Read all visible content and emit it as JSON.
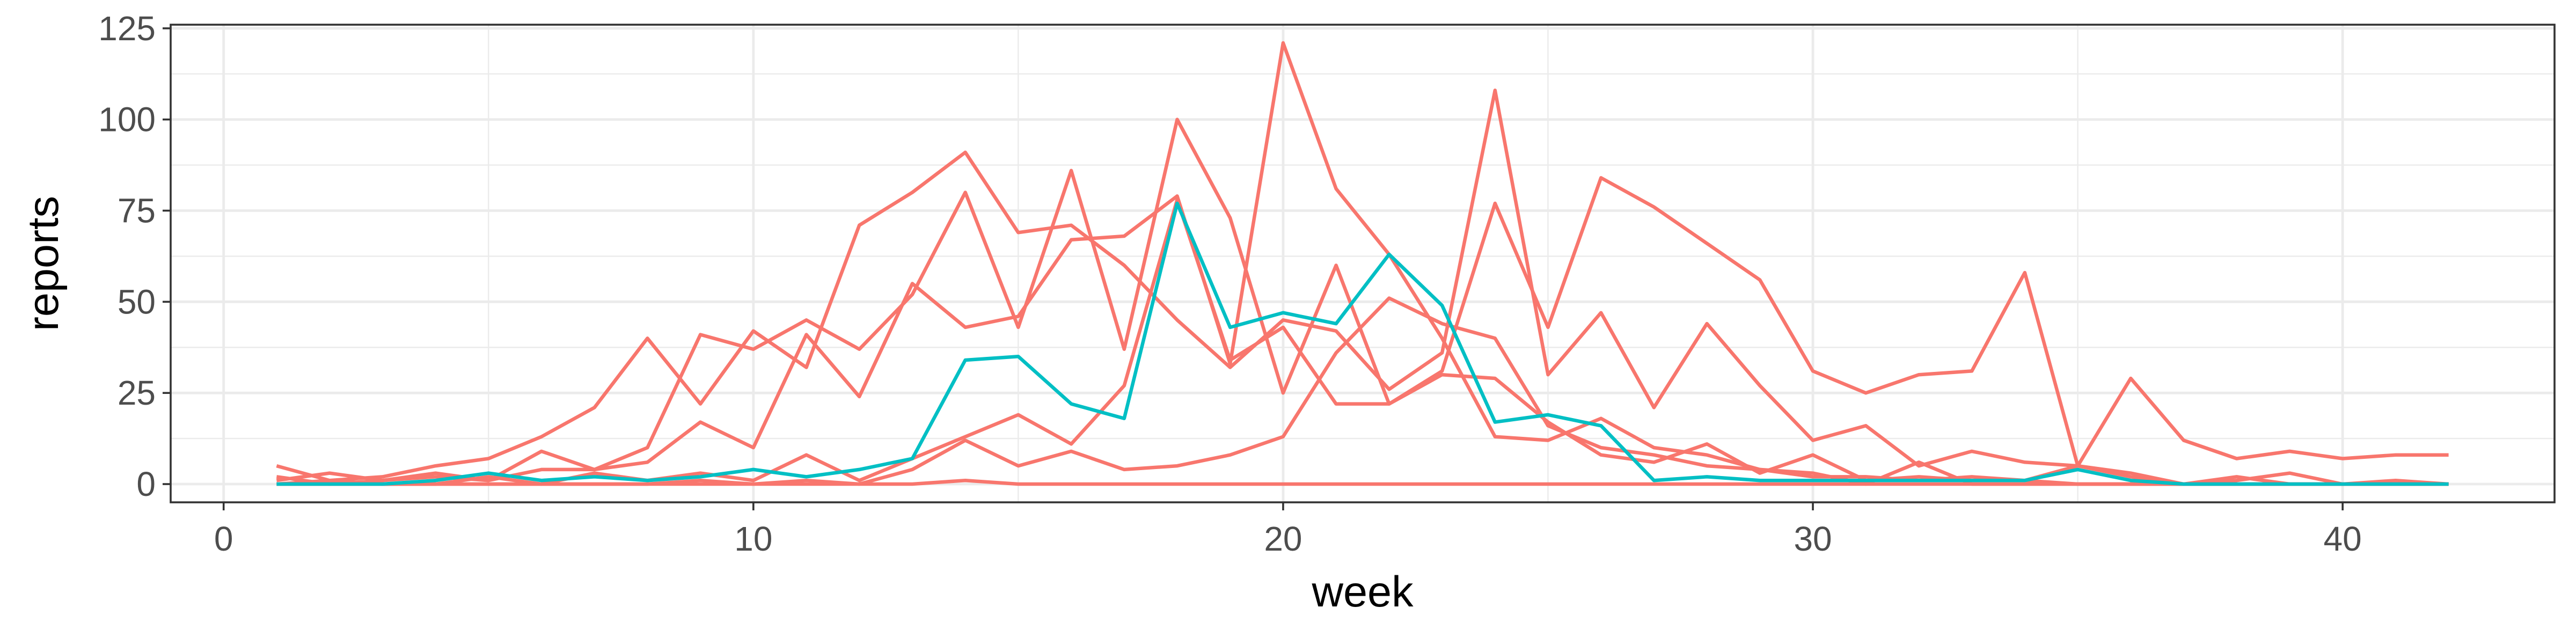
{
  "chart_data": {
    "type": "line",
    "title": "",
    "xlabel": "week",
    "ylabel": "reports",
    "xlim": [
      -1,
      44
    ],
    "ylim": [
      -5,
      126
    ],
    "x_ticks": [
      0,
      10,
      20,
      30,
      40
    ],
    "y_ticks": [
      0,
      25,
      50,
      75,
      100,
      125
    ],
    "grid": true,
    "legend": "none",
    "series": [
      {
        "color": "#F8766D",
        "x": [
          1,
          2,
          3,
          4,
          5,
          6,
          7,
          8,
          9,
          10,
          11,
          12,
          13,
          14,
          15,
          16,
          17,
          18,
          19,
          20,
          21,
          22,
          23,
          24,
          25,
          26,
          27,
          28,
          29,
          30,
          31,
          32,
          33,
          34,
          35,
          36,
          37,
          38,
          39,
          40,
          41,
          42
        ],
        "values": [
          5,
          1,
          2,
          5,
          7,
          13,
          21,
          40,
          22,
          42,
          32,
          71,
          80,
          91,
          69,
          71,
          60,
          45,
          32,
          45,
          42,
          26,
          36,
          108,
          30,
          47,
          21,
          44,
          27,
          12,
          16,
          5,
          9,
          6,
          5,
          3,
          0,
          2,
          0,
          0,
          0,
          0
        ]
      },
      {
        "color": "#F8766D",
        "x": [
          1,
          2,
          3,
          4,
          5,
          6,
          7,
          8,
          9,
          10,
          11,
          12,
          13,
          14,
          15,
          16,
          17,
          18,
          19,
          20,
          21,
          22,
          23,
          24,
          25,
          26,
          27,
          28,
          29,
          30,
          31,
          32,
          33,
          34,
          35,
          36,
          37,
          38,
          39,
          40,
          41,
          42
        ],
        "values": [
          1,
          3,
          1,
          3,
          1,
          9,
          4,
          10,
          41,
          37,
          45,
          37,
          52,
          80,
          43,
          86,
          37,
          100,
          73,
          25,
          60,
          22,
          31,
          77,
          43,
          84,
          76,
          66,
          56,
          31,
          25,
          30,
          31,
          58,
          5,
          29,
          12,
          7,
          9,
          7,
          8,
          8
        ]
      },
      {
        "color": "#F8766D",
        "x": [
          1,
          2,
          3,
          4,
          5,
          6,
          7,
          8,
          9,
          10,
          11,
          12,
          13,
          14,
          15,
          16,
          17,
          18,
          19,
          20,
          21,
          22,
          23,
          24,
          25,
          26,
          27,
          28,
          29,
          30,
          31,
          32,
          33,
          34,
          35,
          36,
          37,
          38,
          39,
          40,
          41,
          42
        ],
        "values": [
          2,
          0,
          1,
          2,
          1,
          4,
          4,
          6,
          17,
          10,
          41,
          24,
          55,
          43,
          46,
          67,
          68,
          79,
          33,
          121,
          81,
          63,
          40,
          13,
          12,
          18,
          10,
          8,
          4,
          3,
          0,
          6,
          0,
          0,
          0,
          0,
          0,
          0,
          0,
          0,
          0,
          0
        ]
      },
      {
        "color": "#F8766D",
        "x": [
          1,
          2,
          3,
          4,
          5,
          6,
          7,
          8,
          9,
          10,
          11,
          12,
          13,
          14,
          15,
          16,
          17,
          18,
          19,
          20,
          21,
          22,
          23,
          24,
          25,
          26,
          27,
          28,
          29,
          30,
          31,
          32,
          33,
          34,
          35,
          36,
          37,
          38,
          39,
          40,
          41,
          42
        ],
        "values": [
          0,
          1,
          0,
          0,
          2,
          0,
          3,
          1,
          3,
          1,
          8,
          1,
          7,
          13,
          19,
          11,
          27,
          78,
          34,
          43,
          22,
          22,
          30,
          29,
          17,
          8,
          6,
          11,
          3,
          8,
          1,
          2,
          1,
          1,
          5,
          2,
          0,
          1,
          3,
          0,
          1,
          0
        ]
      },
      {
        "color": "#F8766D",
        "x": [
          1,
          2,
          3,
          4,
          5,
          6,
          7,
          8,
          9,
          10,
          11,
          12,
          13,
          14,
          15,
          16,
          17,
          18,
          19,
          20,
          21,
          22,
          23,
          24,
          25,
          26,
          27,
          28,
          29,
          30,
          31,
          32,
          33,
          34,
          35,
          36,
          37,
          38,
          39,
          40,
          41,
          42
        ],
        "values": [
          0,
          0,
          0,
          0,
          0,
          0,
          0,
          0,
          1,
          0,
          1,
          0,
          4,
          12,
          5,
          9,
          4,
          5,
          8,
          13,
          36,
          51,
          44,
          40,
          16,
          10,
          8,
          5,
          4,
          2,
          2,
          1,
          2,
          1,
          0,
          0,
          0,
          0,
          0,
          0,
          0,
          0
        ]
      },
      {
        "color": "#F8766D",
        "x": [
          1,
          2,
          3,
          4,
          5,
          6,
          7,
          8,
          9,
          10,
          11,
          12,
          13,
          14,
          15,
          16,
          17,
          18,
          19,
          20,
          21,
          22,
          23,
          24,
          25,
          26,
          27,
          28,
          29,
          30,
          31,
          32,
          33,
          34,
          35,
          36,
          37,
          38,
          39,
          40,
          41,
          42
        ],
        "values": [
          0,
          0,
          0,
          0,
          0,
          0,
          0,
          0,
          0,
          0,
          0,
          0,
          0,
          1,
          0,
          0,
          0,
          0,
          0,
          0,
          0,
          0,
          0,
          0,
          0,
          0,
          0,
          0,
          0,
          0,
          0,
          0,
          0,
          0,
          0,
          0,
          0,
          0,
          0,
          0,
          0,
          0
        ]
      },
      {
        "color": "#00BFC4",
        "x": [
          1,
          2,
          3,
          4,
          5,
          6,
          7,
          8,
          9,
          10,
          11,
          12,
          13,
          14,
          15,
          16,
          17,
          18,
          19,
          20,
          21,
          22,
          23,
          24,
          25,
          26,
          27,
          28,
          29,
          30,
          31,
          32,
          33,
          34,
          35,
          36,
          37,
          38,
          39,
          40,
          41,
          42
        ],
        "values": [
          0,
          0,
          0,
          1,
          3,
          1,
          2,
          1,
          2,
          4,
          2,
          4,
          7,
          34,
          35,
          22,
          18,
          77,
          43,
          47,
          44,
          63,
          49,
          17,
          19,
          16,
          1,
          2,
          1,
          1,
          1,
          1,
          1,
          1,
          4,
          1,
          0,
          0,
          0,
          0,
          0,
          0
        ]
      }
    ]
  }
}
